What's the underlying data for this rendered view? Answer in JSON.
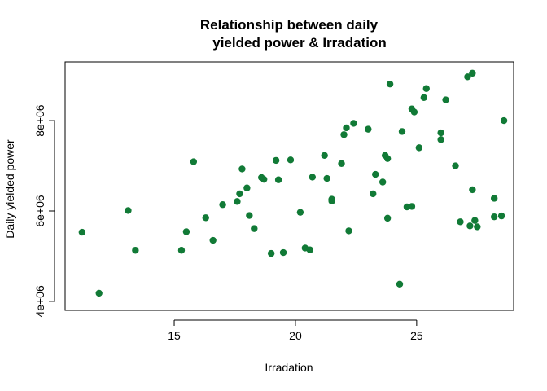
{
  "chart_data": {
    "type": "scatter",
    "title": [
      "Relationship between daily",
      "yielded power & Irradation"
    ],
    "xlabel": "Irradation",
    "ylabel": "Daily yielded power",
    "xlim": [
      10.5,
      29
    ],
    "ylim": [
      3800000,
      9300000
    ],
    "xticks": [
      15,
      20,
      25
    ],
    "xtick_labels": [
      "15",
      "20",
      "25"
    ],
    "yticks": [
      4000000,
      6000000,
      8000000
    ],
    "ytick_labels": [
      "4e+06",
      "6e+06",
      "8e+06"
    ],
    "point_color": "#117a36",
    "grid": false,
    "points": [
      [
        11.2,
        5530000
      ],
      [
        11.9,
        4180000
      ],
      [
        13.1,
        6010000
      ],
      [
        13.4,
        5130000
      ],
      [
        15.3,
        5130000
      ],
      [
        15.5,
        5540000
      ],
      [
        15.8,
        7090000
      ],
      [
        16.3,
        5850000
      ],
      [
        16.6,
        5350000
      ],
      [
        17.0,
        6140000
      ],
      [
        17.6,
        6210000
      ],
      [
        17.7,
        6380000
      ],
      [
        17.8,
        6930000
      ],
      [
        18.0,
        6510000
      ],
      [
        18.1,
        5900000
      ],
      [
        18.3,
        5610000
      ],
      [
        18.6,
        6740000
      ],
      [
        18.7,
        6700000
      ],
      [
        19.0,
        5060000
      ],
      [
        19.2,
        7120000
      ],
      [
        19.3,
        6690000
      ],
      [
        19.5,
        5080000
      ],
      [
        19.8,
        7130000
      ],
      [
        20.2,
        5970000
      ],
      [
        20.4,
        5180000
      ],
      [
        20.6,
        5140000
      ],
      [
        20.7,
        6750000
      ],
      [
        21.2,
        7230000
      ],
      [
        21.3,
        6720000
      ],
      [
        21.5,
        6220000
      ],
      [
        21.5,
        6260000
      ],
      [
        21.9,
        7050000
      ],
      [
        22.0,
        7690000
      ],
      [
        22.1,
        7840000
      ],
      [
        22.2,
        5560000
      ],
      [
        22.4,
        7940000
      ],
      [
        23.0,
        7810000
      ],
      [
        23.2,
        6380000
      ],
      [
        23.3,
        6810000
      ],
      [
        23.6,
        6640000
      ],
      [
        23.7,
        7230000
      ],
      [
        23.8,
        5840000
      ],
      [
        23.8,
        7160000
      ],
      [
        23.9,
        8810000
      ],
      [
        24.3,
        4380000
      ],
      [
        24.4,
        7760000
      ],
      [
        24.6,
        6090000
      ],
      [
        24.8,
        6100000
      ],
      [
        24.8,
        8260000
      ],
      [
        24.9,
        8190000
      ],
      [
        25.1,
        7400000
      ],
      [
        25.3,
        8510000
      ],
      [
        25.4,
        8710000
      ],
      [
        26.0,
        7730000
      ],
      [
        26.0,
        7580000
      ],
      [
        26.2,
        8460000
      ],
      [
        26.6,
        7000000
      ],
      [
        26.8,
        5760000
      ],
      [
        27.1,
        8970000
      ],
      [
        27.2,
        5670000
      ],
      [
        27.3,
        9050000
      ],
      [
        27.3,
        6470000
      ],
      [
        27.4,
        5790000
      ],
      [
        27.5,
        5650000
      ],
      [
        28.2,
        6280000
      ],
      [
        28.2,
        5870000
      ],
      [
        28.5,
        5890000
      ],
      [
        28.6,
        8000000
      ]
    ]
  }
}
